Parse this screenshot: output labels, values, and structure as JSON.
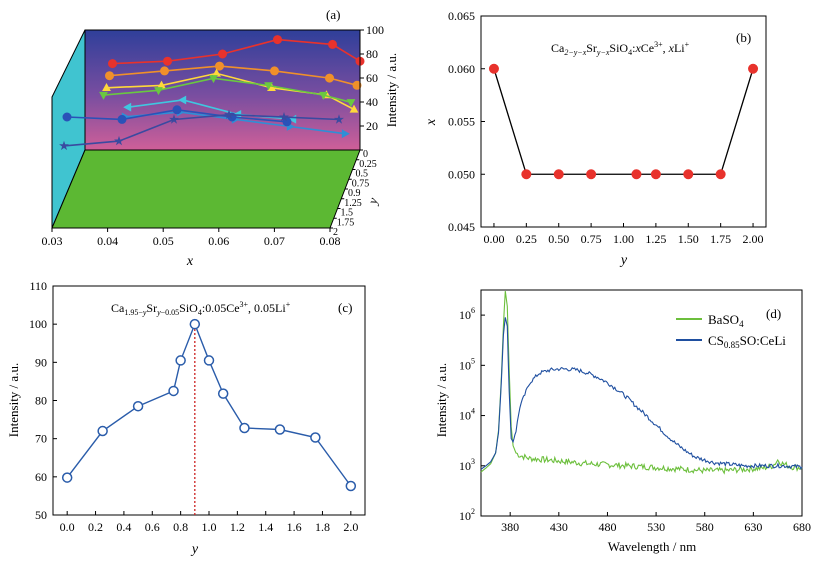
{
  "chart_data": [
    {
      "id": "a",
      "type": "line",
      "panel_label": "(a)",
      "xlabel": "x",
      "ylabel": "y",
      "zlabel": "Intensity / a.u.",
      "x_ticks": [
        "0.03",
        "0.04",
        "0.05",
        "0.06",
        "0.07",
        "0.08"
      ],
      "y_ticks": [
        "0",
        "0.25",
        "0.5",
        "0.75",
        "0.9",
        "1.25",
        "1.5",
        "1.75",
        "2"
      ],
      "z_ticks": [
        "20",
        "40",
        "60",
        "80",
        "100"
      ],
      "z_range": [
        0,
        100
      ],
      "colors": {
        "left_wall": "#40c4d0",
        "floor": "#5cb833",
        "back_top": "#2f3f9a",
        "back_bottom": "#cf5f98"
      },
      "series": [
        {
          "color": "#e8322c",
          "marker": "circle",
          "x": [
            0.035,
            0.045,
            0.055,
            0.065,
            0.075,
            0.08
          ],
          "z": [
            72,
            74,
            80,
            92,
            88,
            74
          ]
        },
        {
          "color": "#f0902a",
          "marker": "circle",
          "x": [
            0.035,
            0.045,
            0.055,
            0.065,
            0.075,
            0.08
          ],
          "z": [
            64,
            68,
            72,
            68,
            62,
            56
          ]
        },
        {
          "color": "#ffd83a",
          "marker": "triangle",
          "x": [
            0.035,
            0.045,
            0.055,
            0.065,
            0.075,
            0.08
          ],
          "z": [
            56,
            58,
            68,
            56,
            50,
            38
          ]
        },
        {
          "color": "#6ac840",
          "marker": "triangle-down",
          "x": [
            0.035,
            0.045,
            0.055,
            0.065,
            0.075,
            0.08
          ],
          "z": [
            52,
            56,
            66,
            60,
            52,
            46
          ]
        },
        {
          "color": "#3fc7e0",
          "marker": "triangle-left",
          "x": [
            0.04,
            0.05,
            0.06,
            0.07
          ],
          "z": [
            44,
            50,
            38,
            34
          ]
        },
        {
          "color": "#2e8fd6",
          "marker": "triangle-right",
          "x": [
            0.04,
            0.05,
            0.06,
            0.07,
            0.08
          ],
          "z": [
            38,
            42,
            36,
            30,
            24
          ]
        },
        {
          "color": "#2a52b8",
          "marker": "circle",
          "x": [
            0.03,
            0.04,
            0.05,
            0.06,
            0.07
          ],
          "z": [
            40,
            38,
            46,
            40,
            36
          ]
        },
        {
          "color": "#3a4aa0",
          "marker": "star",
          "x": [
            0.03,
            0.04,
            0.05,
            0.06,
            0.07,
            0.08
          ],
          "z": [
            18,
            22,
            40,
            44,
            42,
            40
          ]
        }
      ]
    },
    {
      "id": "b",
      "type": "line",
      "panel_label": "(b)",
      "formula": "Ca2−y−xSry−xSiO4:xCe3+, xLi+",
      "formula_parts": {
        "a": "Ca",
        "a_sub": "2−y−x",
        "b": "Sr",
        "b_sub": "y−x",
        "c": "SiO",
        "c_sub": "4",
        "d": ":",
        "e": "x",
        "f": "Ce",
        "f_sup": "3+",
        "g": ", ",
        "h": "x",
        "i": "Li",
        "i_sup": "+"
      },
      "xlabel": "y",
      "ylabel": "x",
      "x": [
        0.0,
        0.25,
        0.5,
        0.75,
        1.1,
        1.25,
        1.5,
        1.75,
        2.0
      ],
      "y": [
        0.06,
        0.05,
        0.05,
        0.05,
        0.05,
        0.05,
        0.05,
        0.05,
        0.06
      ],
      "x_ticks": [
        "0.00",
        "0.25",
        "0.50",
        "0.75",
        "1.00",
        "1.25",
        "1.50",
        "1.75",
        "2.00"
      ],
      "y_ticks": [
        "0.045",
        "0.050",
        "0.055",
        "0.060",
        "0.065"
      ],
      "xlim": [
        -0.1,
        2.1
      ],
      "ylim": [
        0.045,
        0.065
      ],
      "colors": {
        "marker": "#e8322c",
        "line": "#000000"
      }
    },
    {
      "id": "c",
      "type": "line",
      "panel_label": "(c)",
      "formula": "Ca1.95−ySry−0.05SiO4:0.05Ce3+, 0.05Li+",
      "formula_parts": {
        "a": "Ca",
        "a_sub": "1.95−",
        "a_sub_it": "y",
        "b": "Sr",
        "b_sub_it": "y",
        "b_sub": "−0.05",
        "c": "SiO",
        "c_sub": "4",
        "d": ":0.05Ce",
        "d_sup": "3+",
        "e": ", 0.05Li",
        "e_sup": "+"
      },
      "xlabel": "y",
      "ylabel": "Intensity / a.u.",
      "x": [
        0.0,
        0.25,
        0.5,
        0.75,
        0.8,
        0.9,
        1.0,
        1.1,
        1.25,
        1.5,
        1.75,
        2.0
      ],
      "y": [
        59.8,
        72.0,
        78.5,
        82.5,
        90.5,
        100.0,
        90.5,
        81.8,
        72.8,
        72.4,
        70.3,
        57.6
      ],
      "peak_x": 0.9,
      "x_ticks": [
        "0.0",
        "0.2",
        "0.4",
        "0.6",
        "0.8",
        "1.0",
        "1.2",
        "1.4",
        "1.6",
        "1.8",
        "2.0"
      ],
      "y_ticks": [
        "50",
        "60",
        "70",
        "80",
        "90",
        "100",
        "110"
      ],
      "xlim": [
        -0.1,
        2.1
      ],
      "ylim": [
        50,
        110
      ],
      "colors": {
        "line": "#2a5caa",
        "peak_line": "#cc2222"
      }
    },
    {
      "id": "d",
      "type": "line",
      "panel_label": "(d)",
      "xlabel": "Wavelength / nm",
      "ylabel": "Intensity / a.u.",
      "y_scale": "log",
      "xlim": [
        350,
        680
      ],
      "ylim_exp": [
        2,
        6.5
      ],
      "x_ticks": [
        "380",
        "430",
        "480",
        "530",
        "580",
        "630",
        "680"
      ],
      "y_ticks": [
        "10",
        "10",
        "10",
        "10",
        "10"
      ],
      "y_tick_exps": [
        "2",
        "3",
        "4",
        "5",
        "6"
      ],
      "series": [
        {
          "name": "BaSO4",
          "name_main": "BaSO",
          "name_sub": "4",
          "color": "#6cbf3c",
          "x": [
            350,
            355,
            360,
            365,
            368,
            371,
            373,
            375,
            377,
            379,
            381,
            383,
            386,
            390,
            400,
            420,
            440,
            460,
            480,
            500,
            520,
            540,
            560,
            580,
            600,
            620,
            640,
            650,
            655,
            660,
            670,
            680
          ],
          "y": [
            750,
            900,
            1100,
            1800,
            5000,
            60000,
            600000,
            3000000,
            1500000,
            80000,
            6000,
            2500,
            1800,
            1600,
            1400,
            1300,
            1200,
            1100,
            1050,
            1000,
            950,
            900,
            850,
            800,
            800,
            850,
            900,
            1000,
            1300,
            1100,
            950,
            900
          ]
        },
        {
          "name": "CS0.85SO:CeLi",
          "name_main": "CS",
          "name_sub": "0.85",
          "name_rest": "SO:CeLi",
          "color": "#1f4fa0",
          "x": [
            350,
            355,
            360,
            365,
            368,
            371,
            373,
            375,
            377,
            379,
            381,
            383,
            386,
            390,
            400,
            410,
            420,
            430,
            440,
            450,
            460,
            470,
            480,
            490,
            500,
            510,
            520,
            530,
            540,
            550,
            560,
            570,
            580,
            590,
            600,
            620,
            640,
            660,
            680
          ],
          "y": [
            850,
            1000,
            1200,
            1800,
            4500,
            50000,
            400000,
            900000,
            600000,
            30000,
            3500,
            3000,
            5000,
            15000,
            45000,
            70000,
            80000,
            85000,
            84000,
            80000,
            70000,
            58000,
            45000,
            33000,
            23000,
            15000,
            10000,
            6500,
            4200,
            2800,
            2000,
            1500,
            1300,
            1150,
            1100,
            1000,
            1000,
            1000,
            950
          ]
        }
      ]
    }
  ]
}
